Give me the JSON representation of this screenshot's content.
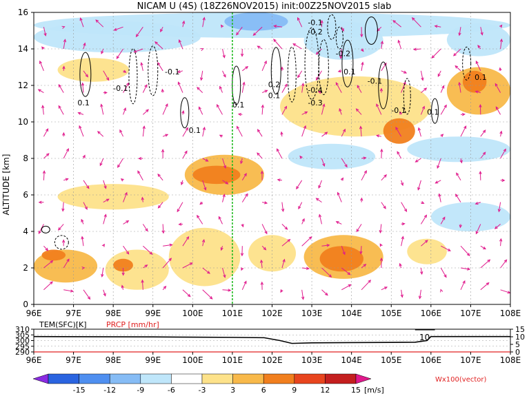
{
  "chart_data": [
    {
      "type": "heatmap",
      "title": "NICAM U (4S) (18Z26NOV2015) init:00Z25NOV2015 slab",
      "ylabel": "ALTITUDE [km]",
      "xlabel": "",
      "x_ticks": [
        "96E",
        "97E",
        "98E",
        "99E",
        "100E",
        "101E",
        "102E",
        "103E",
        "104E",
        "105E",
        "106E",
        "107E",
        "108E"
      ],
      "xlim": [
        96,
        108
      ],
      "y_ticks": [
        "0",
        "2",
        "4",
        "6",
        "8",
        "10",
        "12",
        "14",
        "16"
      ],
      "ylim": [
        0,
        16
      ],
      "grid": true,
      "marker_line_lon": 101.0,
      "shading_levels": [
        -15,
        -12,
        -9,
        -6,
        -3,
        3,
        6,
        9,
        12,
        15
      ],
      "colorbar_labels": [
        "-15",
        "-12",
        "-9",
        "-6",
        "-3",
        "3",
        "6",
        "9",
        "12",
        "15"
      ],
      "colorbar_unit": "[m/s]",
      "colors": [
        "#8a2be2",
        "#2a64e0",
        "#4f8ff0",
        "#86bcf5",
        "#bfe6fa",
        "#ffffff",
        "#fde28a",
        "#f8b94a",
        "#f17f1e",
        "#e8451e",
        "#c41f1f",
        "#e0198c"
      ],
      "vector_label": "Wx100(vector)",
      "vector_color": "#e0198c",
      "contour_labels": [
        "0.1",
        "-0.1",
        "0.2",
        "-0.2",
        "-0.3",
        "-0.4"
      ],
      "positive_regions": [
        {
          "x": [
            96.0,
            97.6
          ],
          "y": [
            1.2,
            3.0
          ],
          "value": 6
        },
        {
          "x": [
            96.2,
            96.8
          ],
          "y": [
            2.4,
            3.0
          ],
          "value": 9
        },
        {
          "x": [
            97.8,
            99.4
          ],
          "y": [
            0.8,
            3.0
          ],
          "value": 4
        },
        {
          "x": [
            98.0,
            98.5
          ],
          "y": [
            1.8,
            2.5
          ],
          "value": 9
        },
        {
          "x": [
            99.4,
            101.2
          ],
          "y": [
            1.0,
            4.2
          ],
          "value": 5
        },
        {
          "x": [
            101.4,
            102.6
          ],
          "y": [
            1.8,
            3.8
          ],
          "value": 4
        },
        {
          "x": [
            102.8,
            104.8
          ],
          "y": [
            1.4,
            3.8
          ],
          "value": 6
        },
        {
          "x": [
            103.2,
            104.3
          ],
          "y": [
            1.8,
            3.2
          ],
          "value": 9
        },
        {
          "x": [
            105.4,
            106.4
          ],
          "y": [
            2.2,
            3.6
          ],
          "value": 4
        },
        {
          "x": [
            99.8,
            101.8
          ],
          "y": [
            6.0,
            8.2
          ],
          "value": 6
        },
        {
          "x": [
            100.0,
            101.2
          ],
          "y": [
            6.6,
            7.6
          ],
          "value": 9
        },
        {
          "x": [
            102.2,
            106.0
          ],
          "y": [
            9.2,
            12.5
          ],
          "value": 4
        },
        {
          "x": [
            104.8,
            105.6
          ],
          "y": [
            8.8,
            10.2
          ],
          "value": 9
        },
        {
          "x": [
            106.4,
            108.0
          ],
          "y": [
            10.4,
            13.0
          ],
          "value": 6
        },
        {
          "x": [
            106.8,
            107.4
          ],
          "y": [
            11.6,
            12.8
          ],
          "value": 9
        },
        {
          "x": [
            96.6,
            98.4
          ],
          "y": [
            12.2,
            13.5
          ],
          "value": 4
        },
        {
          "x": [
            96.6,
            99.4
          ],
          "y": [
            5.2,
            6.6
          ],
          "value": 4
        }
      ],
      "negative_regions": [
        {
          "x": [
            96.0,
            108.0
          ],
          "y": [
            14.6,
            16.0
          ],
          "value": -5
        },
        {
          "x": [
            96.0,
            100.2
          ],
          "y": [
            13.8,
            15.5
          ],
          "value": -4
        },
        {
          "x": [
            102.8,
            104.8
          ],
          "y": [
            13.4,
            15.5
          ],
          "value": -5
        },
        {
          "x": [
            100.8,
            102.4
          ],
          "y": [
            15.0,
            16.0
          ],
          "value": -7
        },
        {
          "x": [
            105.4,
            108.0
          ],
          "y": [
            7.8,
            9.2
          ],
          "value": -4
        },
        {
          "x": [
            106.0,
            108.0
          ],
          "y": [
            4.0,
            5.6
          ],
          "value": -4
        },
        {
          "x": [
            102.4,
            104.6
          ],
          "y": [
            7.4,
            8.8
          ],
          "value": -4
        },
        {
          "x": [
            106.4,
            108.0
          ],
          "y": [
            13.6,
            15.4
          ],
          "value": -5
        }
      ]
    },
    {
      "type": "line",
      "title": "",
      "series": [
        {
          "name": "TEM(SFC)[K]",
          "color": "#000000",
          "x": [
            96.0,
            99.0,
            100.0,
            101.0,
            101.8,
            102.2,
            102.5,
            103.0,
            104.0,
            105.0,
            105.6,
            105.9,
            106.0,
            108.0
          ],
          "y": [
            303.5,
            303.2,
            303.0,
            302.8,
            302.5,
            300.0,
            297.5,
            298.0,
            298.2,
            298.4,
            298.5,
            300.0,
            303.5,
            303.5
          ]
        },
        {
          "name": "PRCP [mm/hr]",
          "color": "#e02020",
          "x": [
            96.0,
            108.0
          ],
          "y": [
            0,
            0
          ]
        }
      ],
      "legend_labels": [
        "TEM(SFC)[K]",
        "PRCP [mm/hr]"
      ],
      "left_ticks": [
        "310",
        "305",
        "300",
        "295",
        "290"
      ],
      "left_range": [
        290,
        310
      ],
      "right_ticks": [
        "15",
        "10",
        "5",
        "0"
      ],
      "right_range": [
        0,
        15
      ],
      "x_ticks": [
        "96E",
        "97E",
        "98E",
        "99E",
        "100E",
        "101E",
        "102E",
        "103E",
        "104E",
        "105E",
        "106E",
        "107E",
        "108E"
      ],
      "annotation": "10"
    }
  ]
}
